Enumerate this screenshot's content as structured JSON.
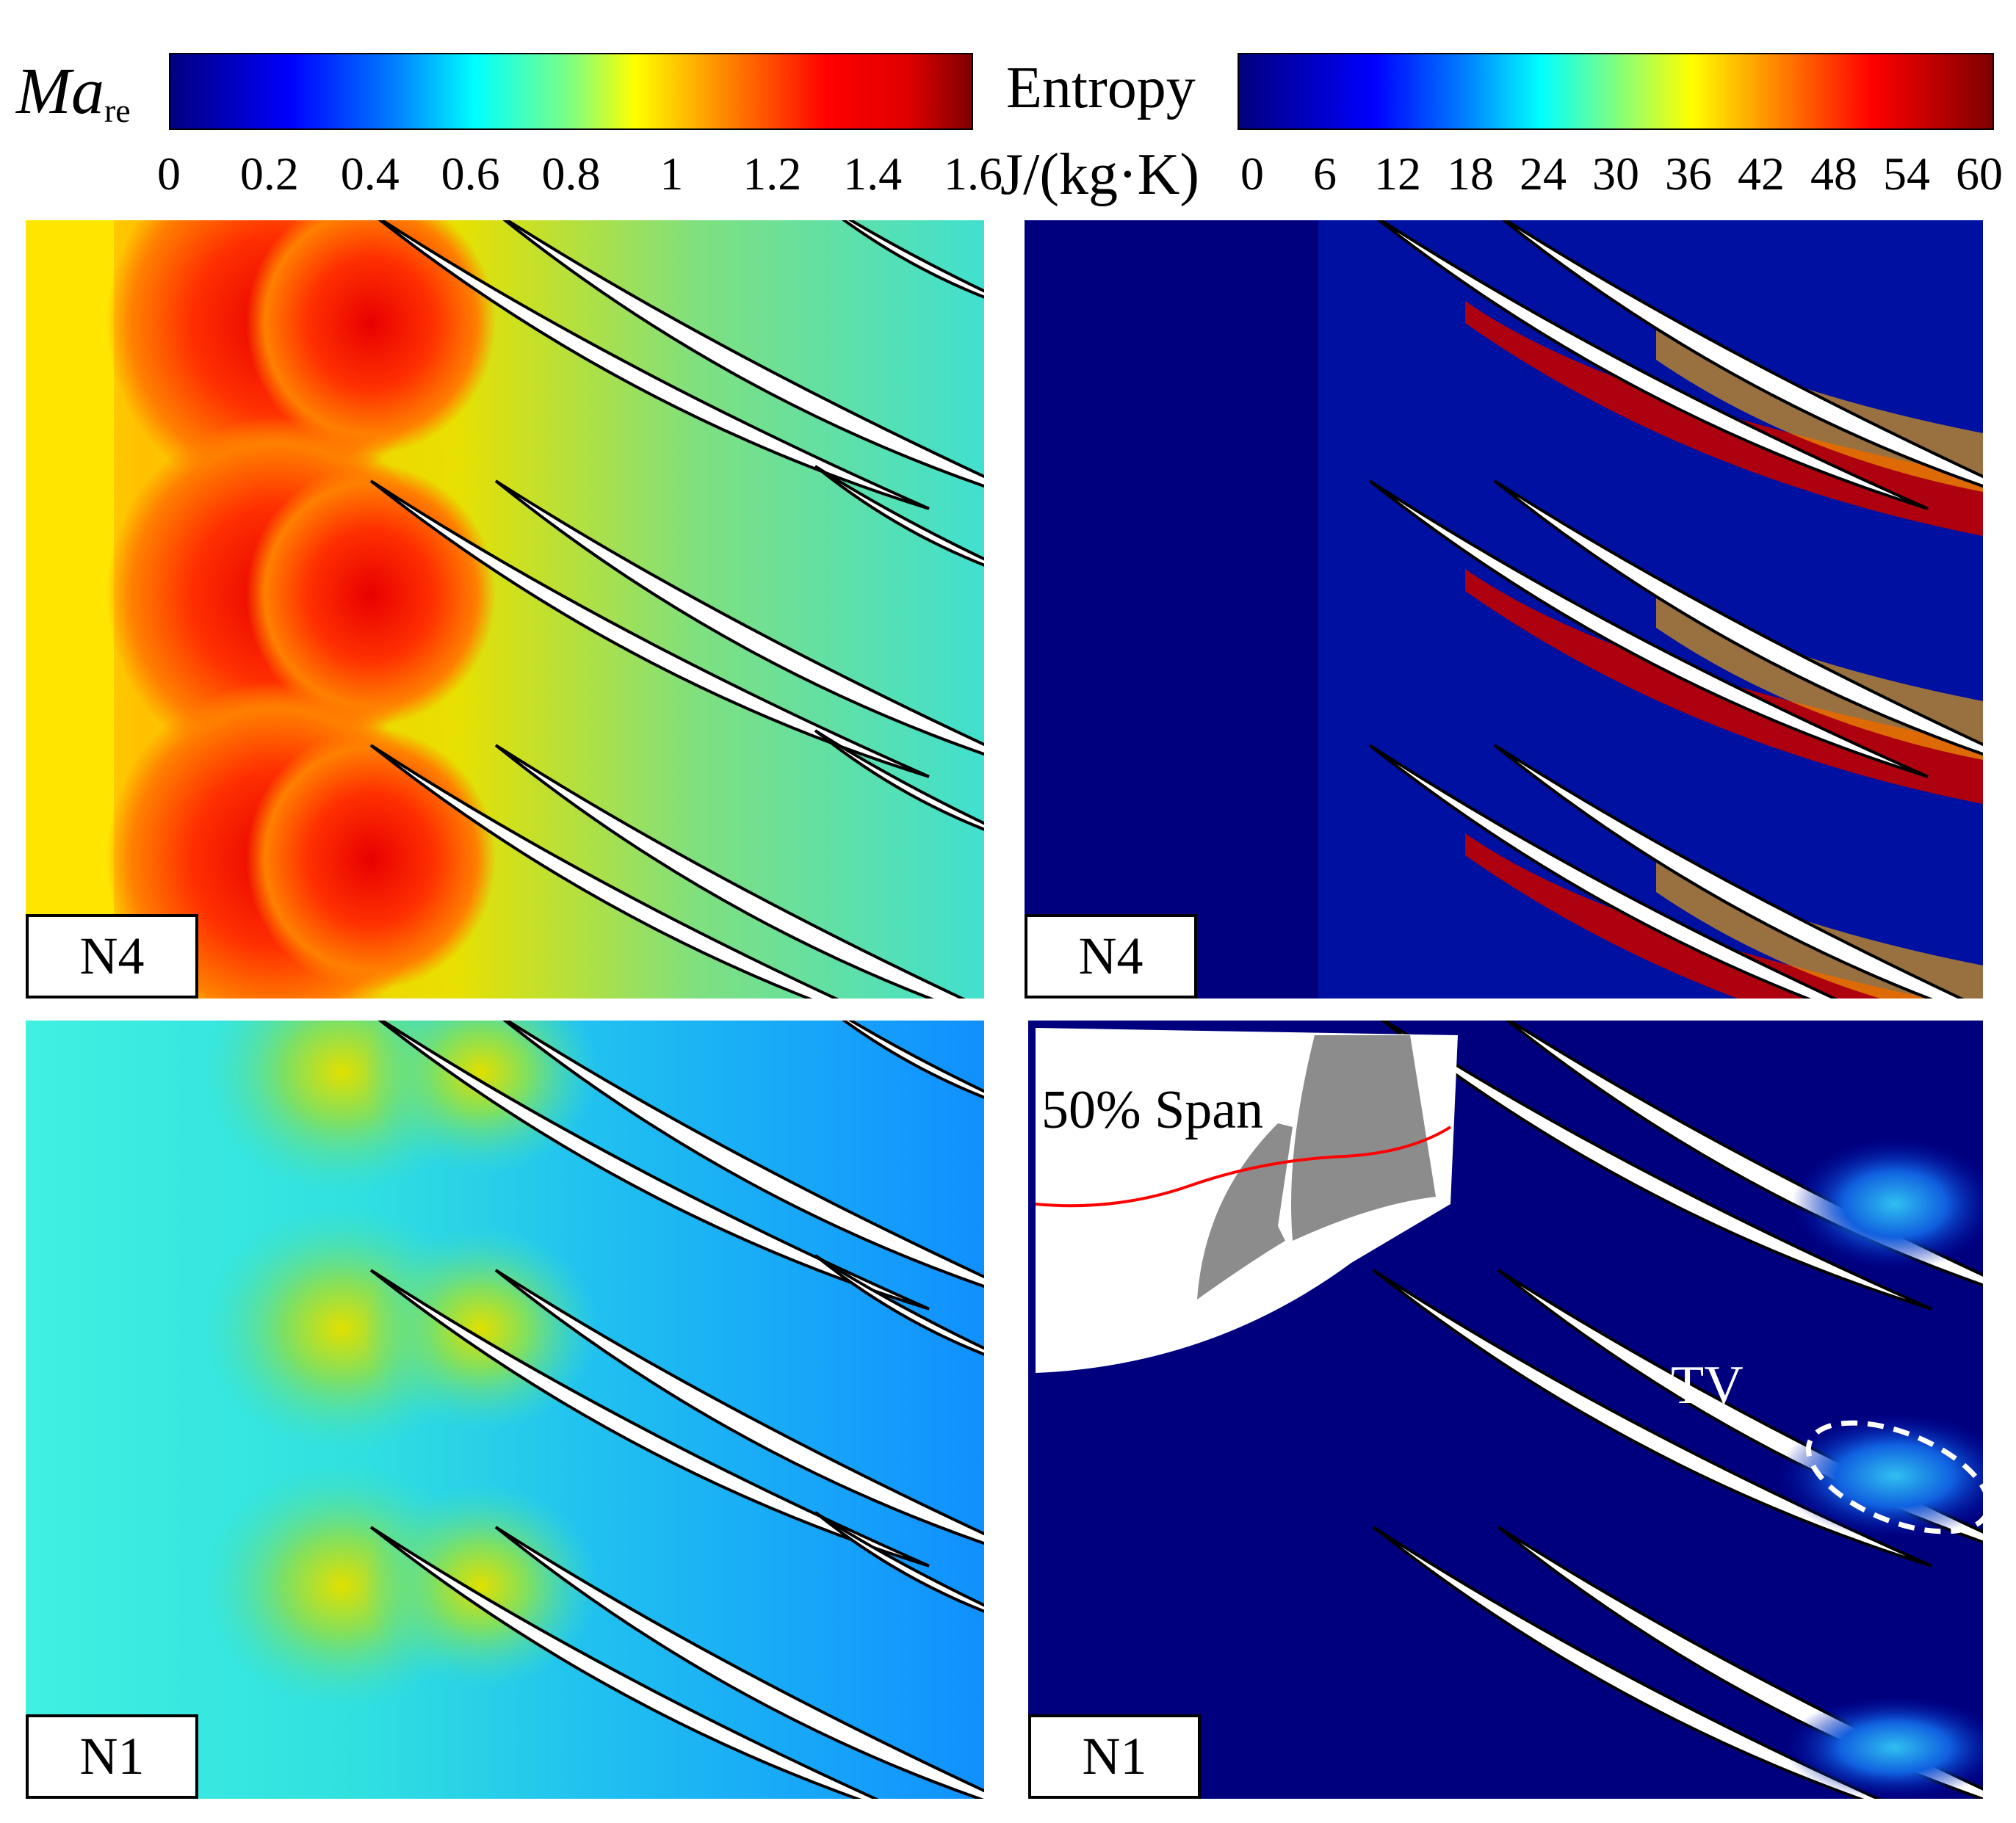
{
  "colorbar_mach": {
    "title_main": "Ma",
    "title_sub": "re",
    "ticks": [
      "0",
      "0.2",
      "0.4",
      "0.6",
      "0.8",
      "1",
      "1.2",
      "1.4",
      "1.6"
    ]
  },
  "colorbar_entropy": {
    "title": "Entropy",
    "unit": "J/(kg·K)",
    "ticks": [
      "0",
      "6",
      "12",
      "18",
      "24",
      "30",
      "36",
      "42",
      "48",
      "54",
      "60"
    ]
  },
  "panels": {
    "mach_n4": {
      "tag": "N4"
    },
    "entropy_n4": {
      "tag": "N4"
    },
    "mach_n1": {
      "tag": "N1"
    },
    "entropy_n1": {
      "tag": "N1"
    }
  },
  "annotations": {
    "inset_label": "50% Span",
    "tv_label": "TV"
  },
  "colors": {
    "jet_dark_blue": "#00007f",
    "jet_red": "#ff0000",
    "inset_blade": "#8c8c8c",
    "span_line": "#ff0000"
  }
}
